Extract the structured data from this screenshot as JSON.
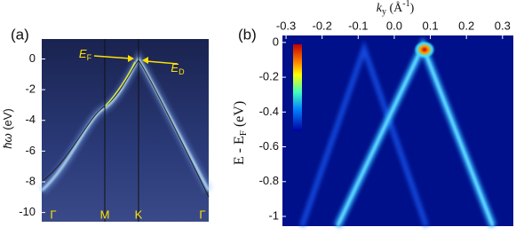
{
  "chart_data": [
    {
      "type": "image",
      "panel_label": "(a)",
      "y_label": {
        "main": "ħω",
        "unit": " (eV)"
      },
      "categories": [
        "Γ",
        "M",
        "K",
        "Γ"
      ],
      "ylim": [
        1.3,
        -10.6
      ],
      "yticks": [
        0,
        -2,
        -4,
        -6,
        -8,
        -10
      ],
      "annotations": [
        {
          "main": "E",
          "sub": "F"
        },
        {
          "main": "E",
          "sub": "D"
        }
      ]
    },
    {
      "type": "image",
      "panel_label": "(b)",
      "x_label": {
        "main": "k",
        "sub": "y",
        "mid": " (Å",
        "sup": "-1",
        "end": ")"
      },
      "y_label": {
        "main": "E - E",
        "sub": "F",
        "end": " (eV)"
      },
      "xlim": [
        -0.31,
        0.33
      ],
      "xticks": [
        -0.3,
        -0.2,
        -0.1,
        {
          "value": 0,
          "label": "0.0"
        },
        0.1,
        0.2,
        0.3
      ],
      "ylim": [
        0.04,
        -1.056
      ],
      "yticks": [
        0,
        -0.2,
        -0.4,
        -0.6,
        -0.8,
        -1
      ]
    }
  ]
}
